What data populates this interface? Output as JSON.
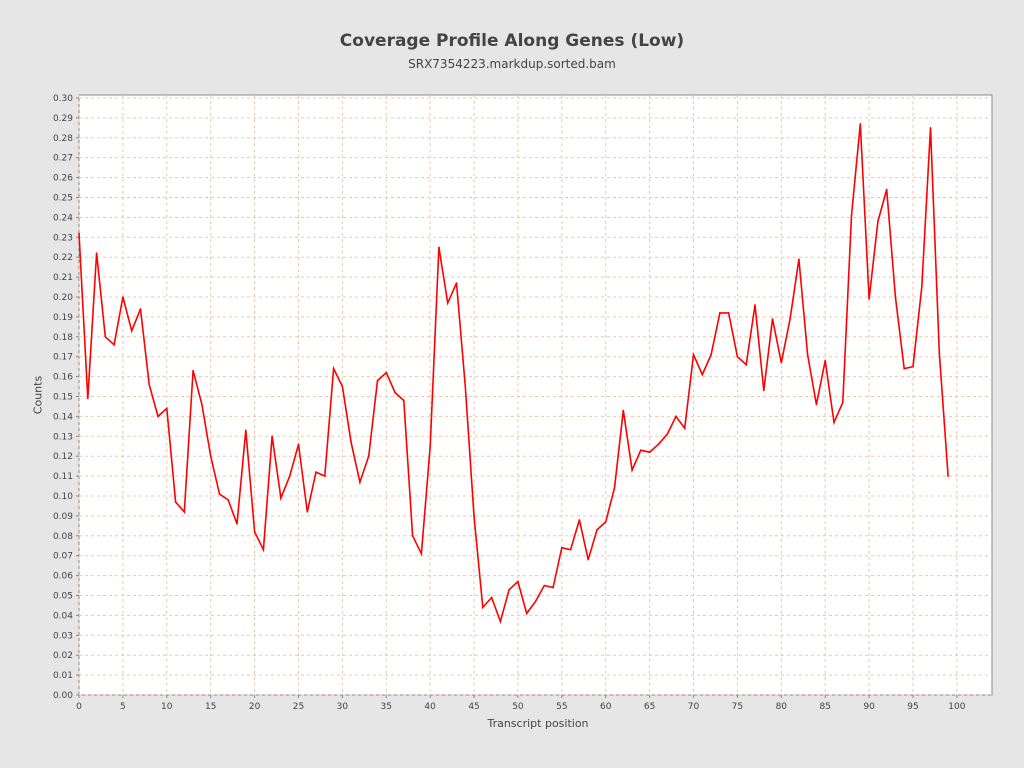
{
  "chart_data": {
    "type": "line",
    "title": "Coverage Profile Along Genes (Low)",
    "subtitle": "SRX7354223.markdup.sorted.bam",
    "xlabel": "Transcript position",
    "ylabel": "Counts",
    "xlim": [
      0,
      104
    ],
    "ylim": [
      0,
      0.3015
    ],
    "grid": true,
    "x_ticks": [
      "0",
      "5",
      "10",
      "15",
      "20",
      "25",
      "30",
      "35",
      "40",
      "45",
      "50",
      "55",
      "60",
      "65",
      "70",
      "75",
      "80",
      "85",
      "90",
      "95",
      "100"
    ],
    "y_ticks": [
      "0.00",
      "0.01",
      "0.02",
      "0.03",
      "0.04",
      "0.05",
      "0.06",
      "0.07",
      "0.08",
      "0.09",
      "0.10",
      "0.11",
      "0.12",
      "0.13",
      "0.14",
      "0.15",
      "0.16",
      "0.17",
      "0.18",
      "0.19",
      "0.20",
      "0.21",
      "0.22",
      "0.23",
      "0.24",
      "0.25",
      "0.26",
      "0.27",
      "0.28",
      "0.29",
      "0.30"
    ],
    "series": [
      {
        "name": "coverage",
        "color": "#ff0000",
        "values": [
          0.232,
          0.149,
          0.222,
          0.18,
          0.176,
          0.2,
          0.183,
          0.194,
          0.156,
          0.14,
          0.144,
          0.097,
          0.092,
          0.163,
          0.146,
          0.12,
          0.101,
          0.098,
          0.086,
          0.133,
          0.082,
          0.073,
          0.13,
          0.099,
          0.11,
          0.126,
          0.092,
          0.112,
          0.11,
          0.164,
          0.155,
          0.127,
          0.107,
          0.12,
          0.158,
          0.162,
          0.152,
          0.148,
          0.08,
          0.071,
          0.125,
          0.225,
          0.197,
          0.207,
          0.155,
          0.09,
          0.044,
          0.049,
          0.037,
          0.053,
          0.057,
          0.041,
          0.047,
          0.055,
          0.054,
          0.074,
          0.073,
          0.088,
          0.068,
          0.083,
          0.087,
          0.104,
          0.143,
          0.113,
          0.123,
          0.122,
          0.126,
          0.131,
          0.14,
          0.134,
          0.171,
          0.161,
          0.171,
          0.192,
          0.192,
          0.17,
          0.166,
          0.196,
          0.153,
          0.189,
          0.167,
          0.189,
          0.219,
          0.171,
          0.146,
          0.168,
          0.137,
          0.147,
          0.241,
          0.287,
          0.199,
          0.238,
          0.254,
          0.2,
          0.164,
          0.165,
          0.205,
          0.285,
          0.172,
          0.11
        ]
      }
    ]
  }
}
